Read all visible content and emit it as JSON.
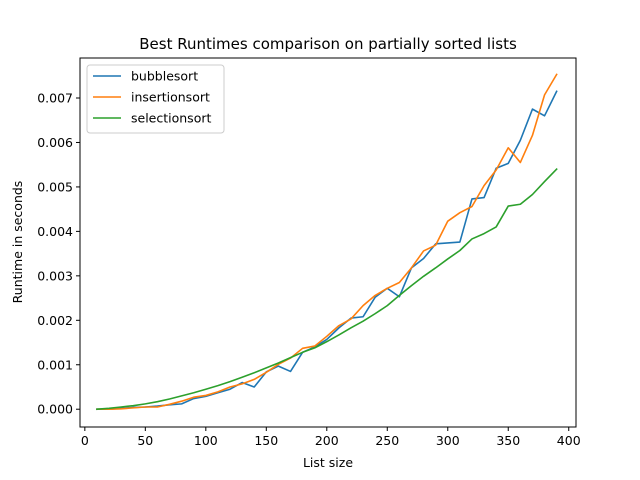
{
  "chart_data": {
    "type": "line",
    "title": "Best Runtimes comparison on partially sorted lists",
    "xlabel": "List size",
    "ylabel": "Runtime in seconds",
    "xlim": [
      -4,
      406
    ],
    "ylim": [
      -0.0004,
      0.0079
    ],
    "xticks": [
      0,
      50,
      100,
      150,
      200,
      250,
      300,
      350,
      400
    ],
    "xtick_labels": [
      "0",
      "50",
      "100",
      "150",
      "200",
      "250",
      "300",
      "350",
      "400"
    ],
    "yticks": [
      0.0,
      0.001,
      0.002,
      0.003,
      0.004,
      0.005,
      0.006,
      0.007
    ],
    "ytick_labels": [
      "0.000",
      "0.001",
      "0.002",
      "0.003",
      "0.004",
      "0.005",
      "0.006",
      "0.007"
    ],
    "grid": false,
    "legend_position": "top-left",
    "x": [
      10,
      20,
      30,
      40,
      50,
      60,
      70,
      80,
      90,
      100,
      110,
      120,
      130,
      140,
      150,
      160,
      170,
      180,
      190,
      200,
      210,
      220,
      230,
      240,
      250,
      260,
      270,
      280,
      290,
      300,
      310,
      320,
      330,
      340,
      350,
      360,
      370,
      380,
      390
    ],
    "series": [
      {
        "name": "bubblesort",
        "color": "#1f77b4",
        "values": [
          0.0,
          0.0,
          2e-05,
          4e-05,
          5e-05,
          7e-05,
          0.0001,
          0.00012,
          0.00024,
          0.00029,
          0.00037,
          0.00045,
          0.0006,
          0.0005,
          0.00084,
          0.00097,
          0.00085,
          0.00128,
          0.0014,
          0.00157,
          0.00183,
          0.00205,
          0.00208,
          0.00252,
          0.00272,
          0.00253,
          0.00318,
          0.00339,
          0.00372,
          0.00374,
          0.00376,
          0.00473,
          0.00476,
          0.00542,
          0.00553,
          0.00605,
          0.00675,
          0.0066,
          0.00715
        ]
      },
      {
        "name": "insertionsort",
        "color": "#ff7f0e",
        "values": [
          0.0,
          0.0,
          1e-05,
          3e-05,
          5e-05,
          5e-05,
          0.00011,
          0.00018,
          0.00027,
          0.00031,
          0.00039,
          0.0005,
          0.00057,
          0.00067,
          0.00083,
          0.00101,
          0.00115,
          0.00137,
          0.00142,
          0.00164,
          0.00188,
          0.00203,
          0.00233,
          0.00256,
          0.00272,
          0.00285,
          0.00318,
          0.00356,
          0.00369,
          0.00423,
          0.00442,
          0.00456,
          0.00503,
          0.00538,
          0.00588,
          0.00555,
          0.00616,
          0.00707,
          0.00753
        ]
      },
      {
        "name": "selectionsort",
        "color": "#2ca02c",
        "values": [
          0.0,
          2e-05,
          5e-05,
          8e-05,
          0.00012,
          0.00017,
          0.00023,
          0.0003,
          0.00037,
          0.00045,
          0.00053,
          0.00062,
          0.00072,
          0.00082,
          0.00093,
          0.00104,
          0.00116,
          0.00128,
          0.00138,
          0.00152,
          0.00167,
          0.00183,
          0.00198,
          0.00215,
          0.00233,
          0.00256,
          0.00278,
          0.00299,
          0.00318,
          0.00338,
          0.00357,
          0.00383,
          0.00395,
          0.0041,
          0.00457,
          0.00461,
          0.00483,
          0.00512,
          0.0054
        ]
      }
    ]
  }
}
